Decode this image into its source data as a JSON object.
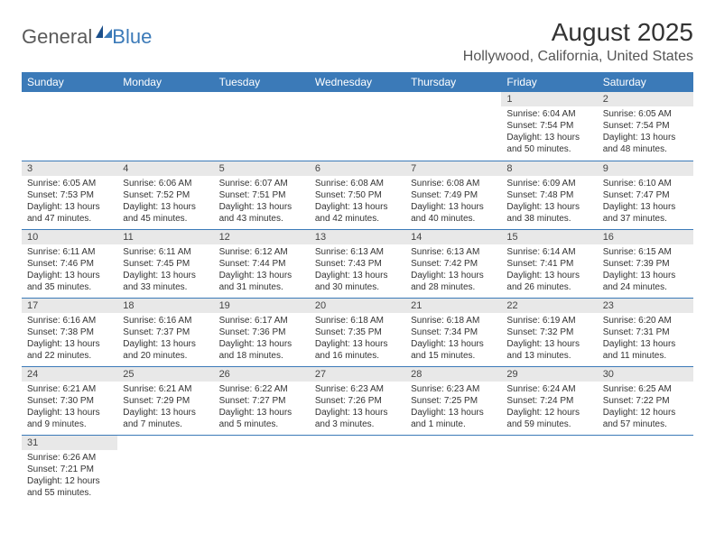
{
  "logo": {
    "text1": "General",
    "text2": "Blue"
  },
  "title": "August 2025",
  "location": "Hollywood, California, United States",
  "colors": {
    "header_bg": "#3b7ab8",
    "header_text": "#ffffff",
    "daynum_bg": "#e8e8e8",
    "border": "#3b7ab8",
    "logo_gray": "#5a5a5a",
    "logo_blue": "#3b7ab8"
  },
  "weekdays": [
    "Sunday",
    "Monday",
    "Tuesday",
    "Wednesday",
    "Thursday",
    "Friday",
    "Saturday"
  ],
  "weeks": [
    [
      null,
      null,
      null,
      null,
      null,
      {
        "n": "1",
        "sr": "Sunrise: 6:04 AM",
        "ss": "Sunset: 7:54 PM",
        "dl": "Daylight: 13 hours and 50 minutes."
      },
      {
        "n": "2",
        "sr": "Sunrise: 6:05 AM",
        "ss": "Sunset: 7:54 PM",
        "dl": "Daylight: 13 hours and 48 minutes."
      }
    ],
    [
      {
        "n": "3",
        "sr": "Sunrise: 6:05 AM",
        "ss": "Sunset: 7:53 PM",
        "dl": "Daylight: 13 hours and 47 minutes."
      },
      {
        "n": "4",
        "sr": "Sunrise: 6:06 AM",
        "ss": "Sunset: 7:52 PM",
        "dl": "Daylight: 13 hours and 45 minutes."
      },
      {
        "n": "5",
        "sr": "Sunrise: 6:07 AM",
        "ss": "Sunset: 7:51 PM",
        "dl": "Daylight: 13 hours and 43 minutes."
      },
      {
        "n": "6",
        "sr": "Sunrise: 6:08 AM",
        "ss": "Sunset: 7:50 PM",
        "dl": "Daylight: 13 hours and 42 minutes."
      },
      {
        "n": "7",
        "sr": "Sunrise: 6:08 AM",
        "ss": "Sunset: 7:49 PM",
        "dl": "Daylight: 13 hours and 40 minutes."
      },
      {
        "n": "8",
        "sr": "Sunrise: 6:09 AM",
        "ss": "Sunset: 7:48 PM",
        "dl": "Daylight: 13 hours and 38 minutes."
      },
      {
        "n": "9",
        "sr": "Sunrise: 6:10 AM",
        "ss": "Sunset: 7:47 PM",
        "dl": "Daylight: 13 hours and 37 minutes."
      }
    ],
    [
      {
        "n": "10",
        "sr": "Sunrise: 6:11 AM",
        "ss": "Sunset: 7:46 PM",
        "dl": "Daylight: 13 hours and 35 minutes."
      },
      {
        "n": "11",
        "sr": "Sunrise: 6:11 AM",
        "ss": "Sunset: 7:45 PM",
        "dl": "Daylight: 13 hours and 33 minutes."
      },
      {
        "n": "12",
        "sr": "Sunrise: 6:12 AM",
        "ss": "Sunset: 7:44 PM",
        "dl": "Daylight: 13 hours and 31 minutes."
      },
      {
        "n": "13",
        "sr": "Sunrise: 6:13 AM",
        "ss": "Sunset: 7:43 PM",
        "dl": "Daylight: 13 hours and 30 minutes."
      },
      {
        "n": "14",
        "sr": "Sunrise: 6:13 AM",
        "ss": "Sunset: 7:42 PM",
        "dl": "Daylight: 13 hours and 28 minutes."
      },
      {
        "n": "15",
        "sr": "Sunrise: 6:14 AM",
        "ss": "Sunset: 7:41 PM",
        "dl": "Daylight: 13 hours and 26 minutes."
      },
      {
        "n": "16",
        "sr": "Sunrise: 6:15 AM",
        "ss": "Sunset: 7:39 PM",
        "dl": "Daylight: 13 hours and 24 minutes."
      }
    ],
    [
      {
        "n": "17",
        "sr": "Sunrise: 6:16 AM",
        "ss": "Sunset: 7:38 PM",
        "dl": "Daylight: 13 hours and 22 minutes."
      },
      {
        "n": "18",
        "sr": "Sunrise: 6:16 AM",
        "ss": "Sunset: 7:37 PM",
        "dl": "Daylight: 13 hours and 20 minutes."
      },
      {
        "n": "19",
        "sr": "Sunrise: 6:17 AM",
        "ss": "Sunset: 7:36 PM",
        "dl": "Daylight: 13 hours and 18 minutes."
      },
      {
        "n": "20",
        "sr": "Sunrise: 6:18 AM",
        "ss": "Sunset: 7:35 PM",
        "dl": "Daylight: 13 hours and 16 minutes."
      },
      {
        "n": "21",
        "sr": "Sunrise: 6:18 AM",
        "ss": "Sunset: 7:34 PM",
        "dl": "Daylight: 13 hours and 15 minutes."
      },
      {
        "n": "22",
        "sr": "Sunrise: 6:19 AM",
        "ss": "Sunset: 7:32 PM",
        "dl": "Daylight: 13 hours and 13 minutes."
      },
      {
        "n": "23",
        "sr": "Sunrise: 6:20 AM",
        "ss": "Sunset: 7:31 PM",
        "dl": "Daylight: 13 hours and 11 minutes."
      }
    ],
    [
      {
        "n": "24",
        "sr": "Sunrise: 6:21 AM",
        "ss": "Sunset: 7:30 PM",
        "dl": "Daylight: 13 hours and 9 minutes."
      },
      {
        "n": "25",
        "sr": "Sunrise: 6:21 AM",
        "ss": "Sunset: 7:29 PM",
        "dl": "Daylight: 13 hours and 7 minutes."
      },
      {
        "n": "26",
        "sr": "Sunrise: 6:22 AM",
        "ss": "Sunset: 7:27 PM",
        "dl": "Daylight: 13 hours and 5 minutes."
      },
      {
        "n": "27",
        "sr": "Sunrise: 6:23 AM",
        "ss": "Sunset: 7:26 PM",
        "dl": "Daylight: 13 hours and 3 minutes."
      },
      {
        "n": "28",
        "sr": "Sunrise: 6:23 AM",
        "ss": "Sunset: 7:25 PM",
        "dl": "Daylight: 13 hours and 1 minute."
      },
      {
        "n": "29",
        "sr": "Sunrise: 6:24 AM",
        "ss": "Sunset: 7:24 PM",
        "dl": "Daylight: 12 hours and 59 minutes."
      },
      {
        "n": "30",
        "sr": "Sunrise: 6:25 AM",
        "ss": "Sunset: 7:22 PM",
        "dl": "Daylight: 12 hours and 57 minutes."
      }
    ],
    [
      {
        "n": "31",
        "sr": "Sunrise: 6:26 AM",
        "ss": "Sunset: 7:21 PM",
        "dl": "Daylight: 12 hours and 55 minutes."
      },
      null,
      null,
      null,
      null,
      null,
      null
    ]
  ]
}
